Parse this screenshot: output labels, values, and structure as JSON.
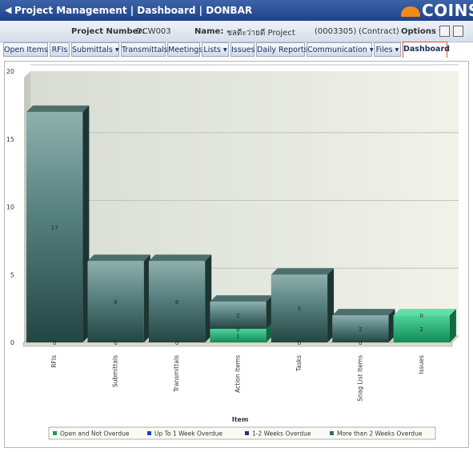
{
  "header": {
    "back_icon": "back-arrow-icon",
    "title": "Project Management | Dashboard | DONBAR",
    "logo_text": "COINS"
  },
  "info": {
    "project_number_label": "Project Number:",
    "project_number": "DCW003",
    "name_label": "Name:",
    "name_value": "ชลดีะว่ายดี Project",
    "code": "(0003305)",
    "type": "(Contract)",
    "options_label": "Options"
  },
  "tabs": [
    {
      "label": "Open Items"
    },
    {
      "label": "RFIs"
    },
    {
      "label": "Submittals ▾"
    },
    {
      "label": "Transmittals"
    },
    {
      "label": "Meetings"
    },
    {
      "label": "Lists ▾"
    },
    {
      "label": "Issues"
    },
    {
      "label": "Daily Reports"
    },
    {
      "label": "Communication ▾"
    },
    {
      "label": "Files ▾"
    },
    {
      "label": "Dashboard"
    }
  ],
  "chart_data": {
    "type": "bar",
    "stacked": true,
    "xlabel": "Item",
    "ylabel": "",
    "ylim": [
      0,
      20
    ],
    "yticks": [
      0,
      5,
      10,
      15,
      20
    ],
    "categories": [
      "RFIs",
      "Submittals",
      "Transmittals",
      "Action Items",
      "Tasks",
      "Snag List Items",
      "Issues"
    ],
    "series": [
      {
        "name": "Open and Not Overdue",
        "color": "#1e9a68",
        "values": [
          0,
          0,
          0,
          1,
          0,
          0,
          2
        ]
      },
      {
        "name": "Up To 1 Week Overdue",
        "color": "#1f3ad8",
        "values": [
          0,
          0,
          0,
          0,
          0,
          0,
          0
        ]
      },
      {
        "name": "1-2 Weeks Overdue",
        "color": "#2e2e7a",
        "values": [
          0,
          0,
          0,
          0,
          0,
          0,
          0
        ]
      },
      {
        "name": "More than 2 Weeks Overdue",
        "color": "#3f6462",
        "values": [
          17,
          6,
          6,
          2,
          5,
          2,
          0
        ]
      }
    ],
    "labels": [
      {
        "cat": 0,
        "text": "17",
        "y": 8.5
      },
      {
        "cat": 0,
        "text": "0",
        "y": 0
      },
      {
        "cat": 1,
        "text": "6",
        "y": 3
      },
      {
        "cat": 1,
        "text": "0",
        "y": 0
      },
      {
        "cat": 2,
        "text": "6",
        "y": 3
      },
      {
        "cat": 2,
        "text": "0",
        "y": 0
      },
      {
        "cat": 3,
        "text": "2",
        "y": 2
      },
      {
        "cat": 3,
        "text": "0",
        "y": 1
      },
      {
        "cat": 3,
        "text": "1",
        "y": 0.5
      },
      {
        "cat": 4,
        "text": "5",
        "y": 2.5
      },
      {
        "cat": 4,
        "text": "0",
        "y": 0
      },
      {
        "cat": 5,
        "text": "2",
        "y": 1
      },
      {
        "cat": 5,
        "text": "0",
        "y": 0
      },
      {
        "cat": 6,
        "text": "0",
        "y": 2
      },
      {
        "cat": 6,
        "text": "2",
        "y": 1
      }
    ],
    "legend_position": "bottom",
    "grid": true
  }
}
